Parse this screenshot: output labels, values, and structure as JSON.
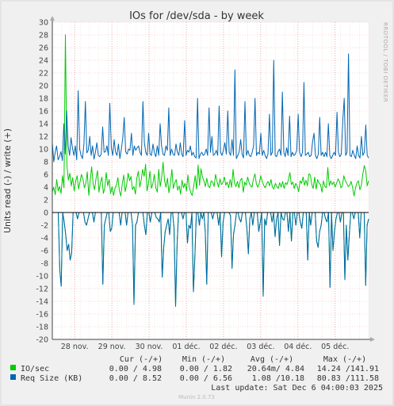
{
  "chart_data": {
    "type": "line",
    "title": "IOs for /dev/sda - by week",
    "ylabel": "Units read (-) / write (+)",
    "ylim": [
      -20,
      30
    ],
    "y_ticks": [
      -20,
      -18,
      -16,
      -14,
      -12,
      -10,
      -8,
      -6,
      -4,
      -2,
      0,
      2,
      4,
      6,
      8,
      10,
      12,
      14,
      16,
      18,
      20,
      22,
      24,
      26,
      28,
      30
    ],
    "xlim_days": [
      0,
      8.5
    ],
    "x_ticks": [
      {
        "label": "28 nov.",
        "day": 0.6
      },
      {
        "label": "29 nov.",
        "day": 1.6
      },
      {
        "label": "30 nov.",
        "day": 2.6
      },
      {
        "label": "01 déc.",
        "day": 3.6
      },
      {
        "label": "02 déc.",
        "day": 4.6
      },
      {
        "label": "03 déc.",
        "day": 5.6
      },
      {
        "label": "04 déc.",
        "day": 6.6
      },
      {
        "label": "05 déc.",
        "day": 7.6
      }
    ],
    "grid": true,
    "series": [
      {
        "name": "IO/sec",
        "color": "#00cc00",
        "write_values": [
          3.2,
          4.0,
          2.8,
          5.2,
          3.4,
          4.1,
          3.0,
          5.8,
          3.9,
          28.0,
          7.5,
          5.1,
          6.2,
          4.2,
          5.5,
          3.4,
          4.9,
          5.8,
          3.7,
          4.8,
          6.0,
          5.3,
          3.9,
          4.6,
          6.4,
          2.7,
          5.0,
          7.2,
          4.5,
          3.6,
          5.4,
          6.6,
          3.2,
          4.7,
          5.6,
          3.0,
          3.9,
          6.3,
          4.2,
          5.2,
          3.0,
          4.1,
          2.7,
          3.8,
          4.4,
          5.5,
          3.4,
          2.6,
          4.6,
          5.9,
          3.3,
          4.4,
          6.2,
          5.0,
          5.7,
          3.6,
          4.1,
          2.9,
          5.4,
          6.5,
          4.0,
          5.2,
          6.8,
          5.7,
          7.6,
          3.4,
          4.7,
          6.5,
          3.8,
          4.6,
          6.0,
          3.9,
          3.2,
          6.8,
          4.1,
          5.5,
          7.9,
          5.0,
          4.0,
          5.4,
          3.1,
          4.5,
          6.8,
          3.8,
          4.7,
          5.2,
          3.5,
          4.2,
          2.9,
          5.1,
          3.9,
          4.6,
          3.4,
          5.9,
          4.0,
          3.1,
          2.7,
          4.2,
          5.8,
          3.7,
          7.5,
          4.3,
          6.9,
          5.6,
          5.0,
          4.1,
          5.4,
          4.2,
          3.9,
          5.0,
          4.8,
          4.1,
          6.0,
          4.9,
          4.0,
          5.3,
          4.4,
          4.7,
          5.6,
          4.3,
          4.8,
          3.9,
          5.2,
          4.0,
          6.8,
          4.6,
          4.1,
          4.9,
          3.9,
          5.1,
          5.4,
          3.2,
          4.8,
          4.3,
          5.6,
          4.7,
          4.2,
          4.0,
          5.3,
          6.1,
          4.5,
          4.0,
          4.6,
          5.8,
          4.9,
          4.3,
          3.9,
          4.5,
          4.9,
          4.2,
          5.2,
          4.0,
          3.7,
          4.6,
          4.1,
          3.8,
          4.7,
          4.0,
          4.9,
          3.8,
          4.7,
          4.4,
          5.2,
          6.3,
          4.4,
          4.8,
          3.8,
          4.6,
          4.1,
          3.3,
          5.0,
          4.6,
          5.6,
          4.3,
          5.1,
          4.2,
          6.1,
          5.9,
          4.4,
          3.8,
          5.6,
          3.7,
          5.2,
          4.6,
          4.4,
          3.2,
          5.0,
          4.1,
          3.9,
          7.1,
          4.2,
          5.0,
          4.4,
          4.8,
          4.0,
          4.6,
          5.3,
          4.9,
          3.9,
          4.2,
          5.8,
          5.0,
          4.6,
          4.1,
          4.3,
          4.9,
          3.9,
          2.6,
          3.9,
          4.7,
          5.0,
          3.6,
          4.3,
          6.0,
          7.4,
          6.6,
          4.2,
          5.0
        ],
        "read_values": [
          0,
          0,
          0,
          0,
          0,
          -9.0,
          -11.6,
          0,
          -1.5,
          -3.5,
          -6.0,
          -5.0,
          -7.5,
          -6.4,
          0,
          0,
          0,
          -1.0,
          0,
          0,
          0,
          0,
          -1.5,
          -2.0,
          -1.0,
          0,
          0,
          0,
          -1.5,
          0,
          0,
          0,
          0,
          0,
          -11.3,
          -2.0,
          -1.0,
          0,
          0,
          -3.0,
          -2.5,
          0,
          0,
          0,
          0,
          0,
          -2.0,
          0,
          0,
          0,
          -2.0,
          0,
          0,
          0,
          -2.0,
          -14.5,
          -2.0,
          -1.5,
          0,
          0,
          0,
          0,
          -2.0,
          -3.5,
          0,
          0,
          -1.5,
          0,
          0,
          0,
          -0.8,
          -1.0,
          -1.5,
          0,
          -10.2,
          -5.5,
          -3.0,
          -2.0,
          -1.0,
          -3.5,
          0,
          0,
          -2.5,
          -14.8,
          -5.0,
          0,
          0,
          0,
          -1.0,
          0,
          0,
          -4.8,
          -2.0,
          -2.5,
          0,
          -12.5,
          -7.0,
          0,
          0,
          -2.0,
          0,
          -1.0,
          0,
          -3.0,
          -11.3,
          0,
          0,
          0,
          -1.0,
          0,
          0,
          0,
          -2.0,
          0,
          -7.0,
          -1.5,
          0,
          0,
          0,
          0,
          -0.5,
          -8.8,
          -3.5,
          -2.0,
          0,
          0,
          -1.0,
          -1.5,
          0,
          0,
          0,
          -2.5,
          -6.5,
          -1.0,
          0,
          -2.0,
          0,
          0,
          0,
          -3.0,
          -1.5,
          0,
          -13.2,
          -1.0,
          -2.0,
          0,
          0,
          0,
          -1.5,
          0,
          -3.8,
          -1.0,
          0,
          -5.2,
          0,
          -1.0,
          -1.2,
          0,
          0,
          -3.0,
          0,
          -4.5,
          0,
          0,
          -2.0,
          0,
          0,
          -1.5,
          -2.5,
          0,
          0,
          0,
          -7.5,
          0,
          -2.0,
          0,
          0,
          0,
          -4.5,
          -5.5,
          -3.0,
          -2.0,
          0,
          0,
          -1.0,
          -1.5,
          0,
          -11.8,
          0,
          -6.0,
          -3.0,
          -1.0,
          0,
          0,
          -1.5,
          0,
          0,
          -10.6,
          -2.0,
          -7.5,
          -3.5,
          0,
          0,
          -1.0,
          0,
          0,
          0,
          -4.0,
          0,
          0,
          0,
          -11.5,
          -2.0,
          -1.0
        ]
      },
      {
        "name": "Req Size (KB)",
        "color": "#0066b3",
        "write_values": [
          11.0,
          8.0,
          9.5,
          10.5,
          8.3,
          8.8,
          9.6,
          8.2,
          14.0,
          9.2,
          16.0,
          10.5,
          9.0,
          11.8,
          10.2,
          9.0,
          10.5,
          8.3,
          19.2,
          10.0,
          9.0,
          8.5,
          10.8,
          17.5,
          9.4,
          9.8,
          12.0,
          9.0,
          10.5,
          8.4,
          9.5,
          11.0,
          9.0,
          8.8,
          9.2,
          13.5,
          9.5,
          9.6,
          10.5,
          9.0,
          17.2,
          10.2,
          9.0,
          11.5,
          9.5,
          9.0,
          10.8,
          8.5,
          10.0,
          11.8,
          15.0,
          9.6,
          9.2,
          10.0,
          9.8,
          12.5,
          9.0,
          10.5,
          9.8,
          10.2,
          10.5,
          9.5,
          9.0,
          17.5,
          11.0,
          9.5,
          9.0,
          12.5,
          9.2,
          9.0,
          10.8,
          9.4,
          8.8,
          10.5,
          9.0,
          14.0,
          10.5,
          9.2,
          9.0,
          10.5,
          9.8,
          16.5,
          9.0,
          10.0,
          9.2,
          9.0,
          10.8,
          9.5,
          9.0,
          11.0,
          9.2,
          8.8,
          14.5,
          9.0,
          9.8,
          9.5,
          10.5,
          9.0,
          9.5,
          8.8,
          8.6,
          18.0,
          8.5,
          9.2,
          9.5,
          9.0,
          9.2,
          10.0,
          9.0,
          16.5,
          9.5,
          12.0,
          9.0,
          9.2,
          9.8,
          9.0,
          16.8,
          9.5,
          9.0,
          9.8,
          11.0,
          9.2,
          16.0,
          9.5,
          9.0,
          11.5,
          9.0,
          22.5,
          8.5,
          9.0,
          9.6,
          11.5,
          9.2,
          8.6,
          17.5,
          9.0,
          9.8,
          9.0,
          8.8,
          9.5,
          10.5,
          18.0,
          9.0,
          9.5,
          9.2,
          12.5,
          9.0,
          9.8,
          9.0,
          8.5,
          9.2,
          15.5,
          9.0,
          9.5,
          24.0,
          9.0,
          8.8,
          9.6,
          10.0,
          9.0,
          19.0,
          9.5,
          8.8,
          10.2,
          9.0,
          15.2,
          8.8,
          9.5,
          9.0,
          9.2,
          9.8,
          15.5,
          9.5,
          8.8,
          9.5,
          20.5,
          9.0,
          9.2,
          9.5,
          8.8,
          9.0,
          11.2,
          12.5,
          9.0,
          8.5,
          9.2,
          15.0,
          9.0,
          9.5,
          8.8,
          9.5,
          8.8,
          14.0,
          9.0,
          8.5,
          9.0,
          9.5,
          9.0,
          15.8,
          9.5,
          8.8,
          9.2,
          14.5,
          18.0,
          9.0,
          9.5,
          25.0,
          9.0,
          8.8,
          9.8,
          9.0,
          8.5,
          10.5,
          9.0,
          8.6,
          12.0,
          9.0,
          9.5,
          13.8,
          9.0,
          8.6
        ],
        "read_values": [
          0,
          0,
          0,
          0,
          0,
          -9.0,
          -11.6,
          0,
          -1.5,
          -3.5,
          -6.0,
          -5.0,
          -7.5,
          -6.4,
          0,
          0,
          0,
          -1.0,
          0,
          0,
          0,
          0,
          -1.5,
          -2.0,
          -1.0,
          0,
          0,
          0,
          -1.5,
          0,
          0,
          0,
          0,
          0,
          -11.3,
          -2.0,
          -1.0,
          0,
          0,
          -3.0,
          -2.5,
          0,
          0,
          0,
          0,
          0,
          -2.0,
          0,
          0,
          0,
          -2.0,
          0,
          0,
          0,
          -2.0,
          -14.5,
          -2.0,
          -1.5,
          0,
          0,
          0,
          0,
          -2.0,
          -3.5,
          0,
          0,
          -1.5,
          0,
          0,
          0,
          -0.8,
          -1.0,
          -1.5,
          0,
          -10.2,
          -5.5,
          -3.0,
          -2.0,
          -1.0,
          -3.5,
          0,
          0,
          -2.5,
          -14.8,
          -5.0,
          0,
          0,
          0,
          -1.0,
          0,
          0,
          -4.8,
          -2.0,
          -2.5,
          0,
          -12.5,
          -7.0,
          0,
          0,
          -2.0,
          0,
          -1.0,
          0,
          -3.0,
          -11.3,
          0,
          0,
          0,
          -1.0,
          0,
          0,
          0,
          -2.0,
          0,
          -7.0,
          -1.5,
          0,
          0,
          0,
          0,
          -0.5,
          -8.8,
          -3.5,
          -2.0,
          0,
          0,
          -1.0,
          -1.5,
          0,
          0,
          0,
          -2.5,
          -6.5,
          -1.0,
          0,
          -2.0,
          0,
          0,
          0,
          -3.0,
          -1.5,
          0,
          -13.2,
          -1.0,
          -2.0,
          0,
          0,
          0,
          -1.5,
          0,
          -3.8,
          -1.0,
          0,
          -5.2,
          0,
          -1.0,
          -1.2,
          0,
          0,
          -3.0,
          0,
          -4.5,
          0,
          0,
          -2.0,
          0,
          0,
          -1.5,
          -2.5,
          0,
          0,
          0,
          -7.5,
          0,
          -2.0,
          0,
          0,
          0,
          -4.5,
          -5.5,
          -3.0,
          -2.0,
          0,
          0,
          -1.0,
          -1.5,
          0,
          -11.8,
          0,
          -6.0,
          -3.0,
          -1.0,
          0,
          0,
          -1.5,
          0,
          0,
          -10.6,
          -2.0,
          -7.5,
          -3.5,
          0,
          0,
          -1.0,
          0,
          0,
          0,
          -4.0,
          0,
          0,
          0,
          -11.5,
          -2.0,
          -1.0
        ]
      }
    ]
  },
  "legend": {
    "headers": [
      "Cur (-/+)",
      "Min (-/+)",
      "Avg (-/+)",
      "Max (-/+)"
    ],
    "rows": [
      {
        "name": "IO/sec",
        "color": "#00cc00",
        "cur": "0.00 / 4.98",
        "min": "0.00 / 1.82",
        "avg": "20.64m/ 4.84",
        "max": "14.24 /141.91"
      },
      {
        "name": "Req Size (KB)",
        "color": "#0066b3",
        "cur": "0.00 / 8.52",
        "min": "0.00 / 6.56",
        "avg": "1.08 /10.18",
        "max": "80.83 /111.58"
      }
    ]
  },
  "footer": {
    "last_update": "Last update: Sat Dec  6 04:00:03 2025",
    "version": "Munin 2.0.73"
  },
  "watermark": "RRDTOOL / TOBI OETIKER"
}
